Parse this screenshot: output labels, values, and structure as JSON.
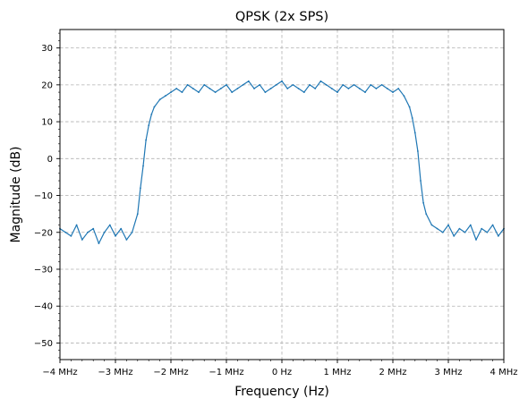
{
  "chart_data": {
    "type": "line",
    "title": "QPSK (2x SPS)",
    "xlabel": "Frequency (Hz)",
    "ylabel": "Magnitude (dB)",
    "xlim": [
      -4,
      4
    ],
    "ylim": [
      -54.5,
      35
    ],
    "x_unit": "MHz",
    "x_ticks": [
      -4,
      -3,
      -2,
      -1,
      0,
      1,
      2,
      3,
      4
    ],
    "x_tick_labels": [
      "−4 MHz",
      "−3 MHz",
      "−2 MHz",
      "−1 MHz",
      "0 Hz",
      "1 MHz",
      "2 MHz",
      "3 MHz",
      "4 MHz"
    ],
    "y_ticks": [
      -50,
      -40,
      -30,
      -20,
      -10,
      0,
      10,
      20,
      30
    ],
    "y_tick_labels": [
      "−50",
      "−40",
      "−30",
      "−20",
      "−10",
      "0",
      "10",
      "20",
      "30"
    ],
    "grid": true,
    "grid_style": "dashed",
    "series": [
      {
        "color": "#1f77b4",
        "x": [
          -4.0,
          -3.9,
          -3.8,
          -3.7,
          -3.6,
          -3.5,
          -3.4,
          -3.3,
          -3.2,
          -3.1,
          -3.0,
          -2.9,
          -2.8,
          -2.7,
          -2.6,
          -2.55,
          -2.5,
          -2.45,
          -2.4,
          -2.35,
          -2.3,
          -2.2,
          -2.1,
          -2.0,
          -1.9,
          -1.8,
          -1.7,
          -1.6,
          -1.5,
          -1.4,
          -1.3,
          -1.2,
          -1.1,
          -1.0,
          -0.9,
          -0.8,
          -0.7,
          -0.6,
          -0.5,
          -0.4,
          -0.3,
          -0.2,
          -0.1,
          0.0,
          0.1,
          0.2,
          0.3,
          0.4,
          0.5,
          0.6,
          0.7,
          0.8,
          0.9,
          1.0,
          1.1,
          1.2,
          1.3,
          1.4,
          1.5,
          1.6,
          1.7,
          1.8,
          1.9,
          2.0,
          2.1,
          2.2,
          2.3,
          2.35,
          2.4,
          2.45,
          2.5,
          2.55,
          2.6,
          2.7,
          2.8,
          2.9,
          3.0,
          3.1,
          3.2,
          3.3,
          3.4,
          3.5,
          3.6,
          3.7,
          3.8,
          3.9,
          4.0
        ],
        "y": [
          -19,
          -20,
          -21,
          -18,
          -22,
          -20,
          -19,
          -23,
          -20,
          -18,
          -21,
          -19,
          -22,
          -20,
          -15,
          -8,
          -2,
          5,
          9,
          12,
          14,
          16,
          17,
          18,
          19,
          18,
          20,
          19,
          18,
          20,
          19,
          18,
          19,
          20,
          18,
          19,
          20,
          21,
          19,
          20,
          18,
          19,
          20,
          21,
          19,
          20,
          19,
          18,
          20,
          19,
          21,
          20,
          19,
          18,
          20,
          19,
          20,
          19,
          18,
          20,
          19,
          20,
          19,
          18,
          19,
          17,
          14,
          11,
          7,
          2,
          -6,
          -12,
          -15,
          -18,
          -19,
          -20,
          -18,
          -21,
          -19,
          -20,
          -18,
          -22,
          -19,
          -20,
          -18,
          -21,
          -19
        ]
      }
    ]
  }
}
